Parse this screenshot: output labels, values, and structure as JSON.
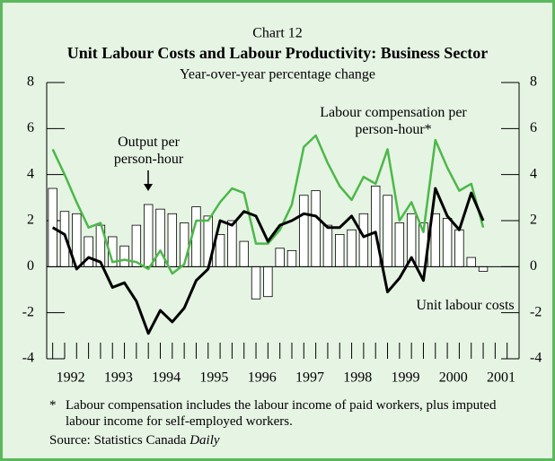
{
  "chart_data": {
    "type": "combo",
    "label": "Chart 12",
    "title": "Unit Labour Costs and Labour Productivity: Business Sector",
    "subtitle": "Year-over-year percentage change",
    "x": [
      1992.0,
      1992.25,
      1992.5,
      1992.75,
      1993.0,
      1993.25,
      1993.5,
      1993.75,
      1994.0,
      1994.25,
      1994.5,
      1994.75,
      1995.0,
      1995.25,
      1995.5,
      1995.75,
      1996.0,
      1996.25,
      1996.5,
      1996.75,
      1997.0,
      1997.25,
      1997.5,
      1997.75,
      1998.0,
      1998.25,
      1998.5,
      1998.75,
      1999.0,
      1999.25,
      1999.5,
      1999.75,
      2000.0,
      2000.25,
      2000.5,
      2000.75,
      2001.0
    ],
    "series": [
      {
        "name": "Output per person-hour",
        "type": "bar",
        "color": "#ffffff",
        "values": [
          3.4,
          2.4,
          2.3,
          1.3,
          1.8,
          1.3,
          0.9,
          1.8,
          2.7,
          2.5,
          2.3,
          1.9,
          2.6,
          2.2,
          1.4,
          2.0,
          1.1,
          -1.4,
          -1.3,
          0.8,
          0.7,
          3.1,
          3.3,
          1.8,
          1.4,
          1.6,
          2.3,
          3.5,
          3.1,
          1.9,
          2.3,
          1.9,
          2.3,
          2.1,
          1.6,
          0.4,
          -0.2
        ]
      },
      {
        "name": "Labour compensation per person-hour*",
        "type": "line",
        "color": "#4cb848",
        "values": [
          5.1,
          4.0,
          2.8,
          1.7,
          1.9,
          0.2,
          0.3,
          0.2,
          -0.1,
          0.7,
          -0.3,
          0.1,
          2.0,
          2.0,
          2.8,
          3.4,
          3.2,
          1.0,
          1.0,
          1.6,
          2.7,
          5.2,
          5.7,
          4.5,
          3.5,
          2.9,
          3.9,
          3.6,
          5.1,
          2.0,
          2.8,
          1.5,
          5.5,
          4.3,
          3.3,
          3.6,
          1.7
        ]
      },
      {
        "name": "Unit labour costs",
        "type": "line",
        "color": "#000000",
        "values": [
          1.7,
          1.4,
          -0.1,
          0.4,
          0.2,
          -0.9,
          -0.7,
          -1.5,
          -2.9,
          -1.9,
          -2.4,
          -1.8,
          -0.6,
          -0.1,
          2.0,
          1.8,
          2.4,
          2.2,
          1.1,
          1.8,
          2.0,
          2.3,
          2.2,
          1.7,
          1.7,
          2.2,
          1.3,
          1.5,
          -1.1,
          -0.5,
          0.4,
          -0.6,
          3.4,
          2.2,
          1.6,
          3.2,
          2.0
        ]
      }
    ],
    "xlim": [
      1991.875,
      2001.75
    ],
    "xticks": [
      1992,
      1993,
      1994,
      1995,
      1996,
      1997,
      1998,
      1999,
      2000,
      2001
    ],
    "ylim": [
      -4,
      8
    ],
    "yticks": [
      -4,
      -2,
      0,
      2,
      4,
      6,
      8
    ],
    "footnote_mark": "*",
    "footnote": "Labour compensation includes the labour income of paid workers, plus imputed labour income for self-employed workers.",
    "source": {
      "text": "Source: Statistics Canada",
      "emphasis": "Daily"
    }
  }
}
